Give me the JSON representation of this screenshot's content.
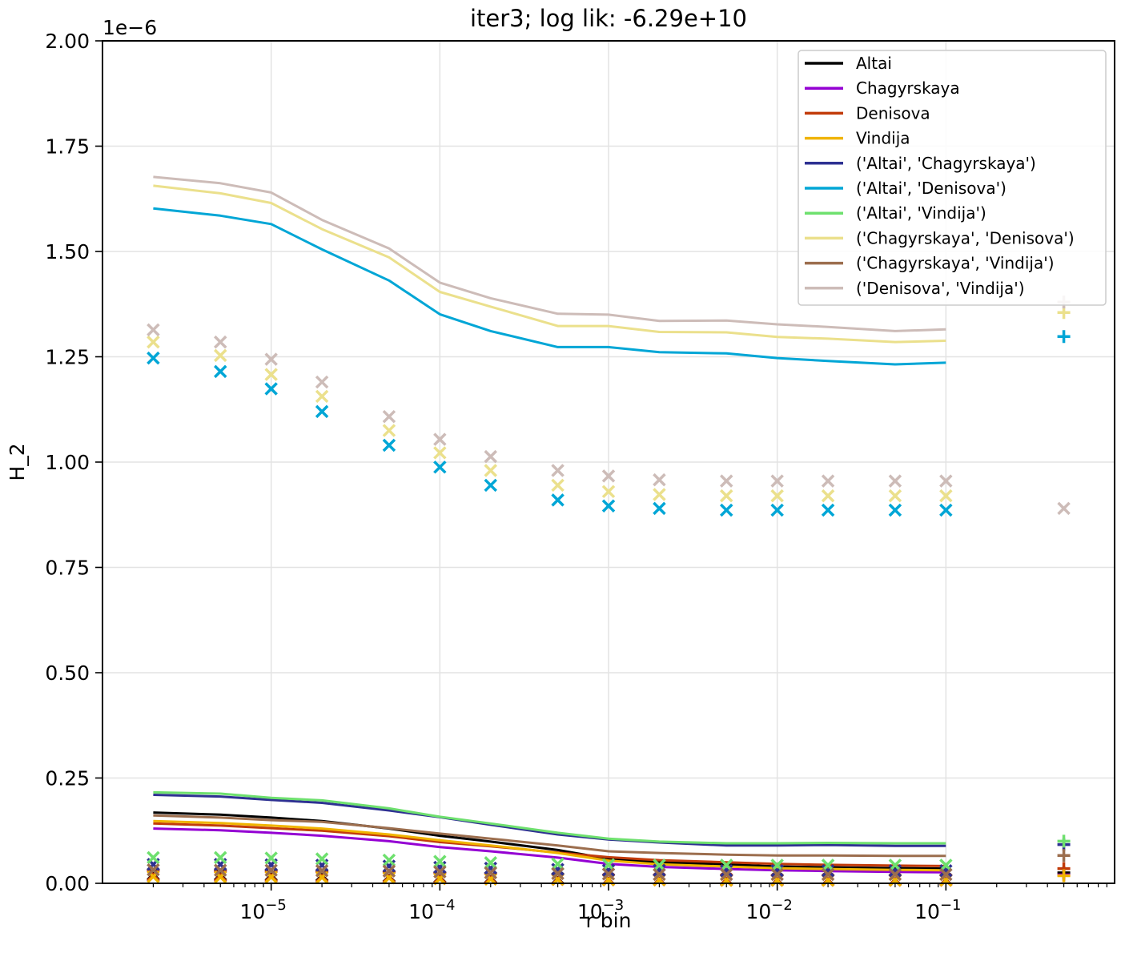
{
  "chart_data": {
    "type": "line",
    "title": "iter3; log lik: -6.29e+10",
    "xlabel": "r bin",
    "ylabel": "H_2",
    "y_offset_label": "1e−6",
    "x_scale": "log",
    "xlim": [
      1e-06,
      1.0
    ],
    "ylim": [
      0,
      2.0
    ],
    "grid": true,
    "legend_position": "top-right",
    "x_tick_labels": [
      {
        "value": 1e-05,
        "base": "10",
        "exp": "−5"
      },
      {
        "value": 0.0001,
        "base": "10",
        "exp": "−4"
      },
      {
        "value": 0.001,
        "base": "10",
        "exp": "−3"
      },
      {
        "value": 0.01,
        "base": "10",
        "exp": "−2"
      },
      {
        "value": 0.1,
        "base": "10",
        "exp": "−1"
      }
    ],
    "y_ticks": [
      0,
      0.25,
      0.5,
      0.75,
      1.0,
      1.25,
      1.5,
      1.75,
      2.0
    ],
    "y_tick_labels": [
      "0.00",
      "0.25",
      "0.50",
      "0.75",
      "1.00",
      "1.25",
      "1.50",
      "1.75",
      "2.00"
    ],
    "x": [
      2e-06,
      5e-06,
      1e-05,
      2e-05,
      5e-05,
      0.0001,
      0.0002,
      0.0005,
      0.001,
      0.002,
      0.005,
      0.01,
      0.02,
      0.05,
      0.1
    ],
    "plus_x": 0.5,
    "series": [
      {
        "name": "Altai",
        "color": "#000000",
        "line": [
          0.168,
          0.163,
          0.156,
          0.148,
          0.13,
          0.113,
          0.099,
          0.079,
          0.058,
          0.05,
          0.045,
          0.04,
          0.038,
          0.036,
          0.035
        ],
        "markers": [
          0.022,
          0.021,
          0.02,
          0.019,
          0.017,
          0.015,
          0.014,
          0.012,
          0.01,
          0.01,
          0.009,
          0.009,
          0.009,
          0.009,
          0.009
        ],
        "plus": 0.025
      },
      {
        "name": "Chagyrskaya",
        "color": "#9400d3",
        "line": [
          0.13,
          0.126,
          0.12,
          0.113,
          0.1,
          0.086,
          0.076,
          0.061,
          0.046,
          0.039,
          0.034,
          0.031,
          0.029,
          0.027,
          0.026
        ],
        "markers": [
          0.018,
          0.017,
          0.016,
          0.015,
          0.014,
          0.012,
          0.011,
          0.009,
          0.008,
          0.008,
          0.007,
          0.007,
          0.007,
          0.007,
          0.007
        ],
        "plus": 0.02
      },
      {
        "name": "Denisova",
        "color": "#c23b0a",
        "line": [
          0.142,
          0.137,
          0.131,
          0.125,
          0.112,
          0.098,
          0.088,
          0.073,
          0.062,
          0.055,
          0.05,
          0.046,
          0.044,
          0.042,
          0.041
        ],
        "markers": [
          0.02,
          0.019,
          0.018,
          0.017,
          0.016,
          0.014,
          0.013,
          0.011,
          0.01,
          0.01,
          0.01,
          0.009,
          0.009,
          0.009,
          0.009
        ],
        "plus": 0.035
      },
      {
        "name": "Vindija",
        "color": "#f0b400",
        "line": [
          0.148,
          0.143,
          0.137,
          0.13,
          0.116,
          0.102,
          0.09,
          0.072,
          0.054,
          0.045,
          0.04,
          0.036,
          0.034,
          0.032,
          0.031
        ],
        "markers": [
          0.016,
          0.015,
          0.015,
          0.014,
          0.013,
          0.011,
          0.01,
          0.009,
          0.008,
          0.008,
          0.007,
          0.007,
          0.007,
          0.007,
          0.007
        ],
        "plus": 0.018
      },
      {
        "name": "('Altai', 'Chagyrskaya')",
        "color": "#2e3192",
        "line": [
          0.21,
          0.206,
          0.198,
          0.191,
          0.173,
          0.157,
          0.139,
          0.116,
          0.104,
          0.097,
          0.09,
          0.09,
          0.091,
          0.089,
          0.089
        ],
        "markers": [
          0.045,
          0.045,
          0.044,
          0.043,
          0.041,
          0.038,
          0.036,
          0.033,
          0.031,
          0.031,
          0.03,
          0.03,
          0.03,
          0.03,
          0.03
        ],
        "plus": 0.092
      },
      {
        "name": "('Altai', 'Denisova')",
        "color": "#00a6d6",
        "line": [
          1.602,
          1.585,
          1.565,
          1.505,
          1.431,
          1.351,
          1.311,
          1.273,
          1.273,
          1.261,
          1.258,
          1.247,
          1.24,
          1.232,
          1.236
        ],
        "markers": [
          1.247,
          1.215,
          1.174,
          1.12,
          1.04,
          0.988,
          0.945,
          0.91,
          0.896,
          0.89,
          0.886,
          0.886,
          0.886,
          0.886,
          0.886
        ],
        "plus": 1.298
      },
      {
        "name": "('Altai', 'Vindija')",
        "color": "#6ee06e",
        "line": [
          0.216,
          0.213,
          0.203,
          0.197,
          0.178,
          0.158,
          0.142,
          0.12,
          0.106,
          0.099,
          0.095,
          0.095,
          0.096,
          0.095,
          0.095
        ],
        "markers": [
          0.061,
          0.061,
          0.06,
          0.058,
          0.055,
          0.052,
          0.049,
          0.046,
          0.044,
          0.043,
          0.043,
          0.043,
          0.043,
          0.043,
          0.043
        ],
        "plus": 0.1
      },
      {
        "name": "('Chagyrskaya', 'Denisova')",
        "color": "#ebe08c",
        "line": [
          1.656,
          1.638,
          1.615,
          1.553,
          1.486,
          1.404,
          1.369,
          1.323,
          1.323,
          1.309,
          1.308,
          1.297,
          1.293,
          1.285,
          1.288
        ],
        "markers": [
          1.285,
          1.253,
          1.208,
          1.156,
          1.075,
          1.022,
          0.98,
          0.945,
          0.93,
          0.923,
          0.92,
          0.92,
          0.92,
          0.92,
          0.92
        ],
        "plus": 1.355
      },
      {
        "name": "('Chagyrskaya', 'Vindija')",
        "color": "#9c6e4e",
        "line": [
          0.161,
          0.156,
          0.15,
          0.146,
          0.131,
          0.118,
          0.106,
          0.09,
          0.076,
          0.072,
          0.068,
          0.066,
          0.066,
          0.065,
          0.065
        ],
        "markers": [
          0.032,
          0.031,
          0.031,
          0.03,
          0.029,
          0.027,
          0.025,
          0.023,
          0.022,
          0.021,
          0.021,
          0.021,
          0.021,
          0.021,
          0.021
        ],
        "plus": 0.066
      },
      {
        "name": "('Denisova', 'Vindija')",
        "color": "#cdbcb8",
        "line": [
          1.677,
          1.662,
          1.64,
          1.575,
          1.507,
          1.426,
          1.389,
          1.352,
          1.35,
          1.335,
          1.336,
          1.327,
          1.321,
          1.311,
          1.315
        ],
        "markers": [
          1.314,
          1.285,
          1.244,
          1.19,
          1.108,
          1.054,
          1.013,
          0.98,
          0.967,
          0.958,
          0.955,
          0.955,
          0.955,
          0.955,
          0.955
        ],
        "plus": 1.38,
        "extra_x_marker": 0.89
      }
    ]
  }
}
